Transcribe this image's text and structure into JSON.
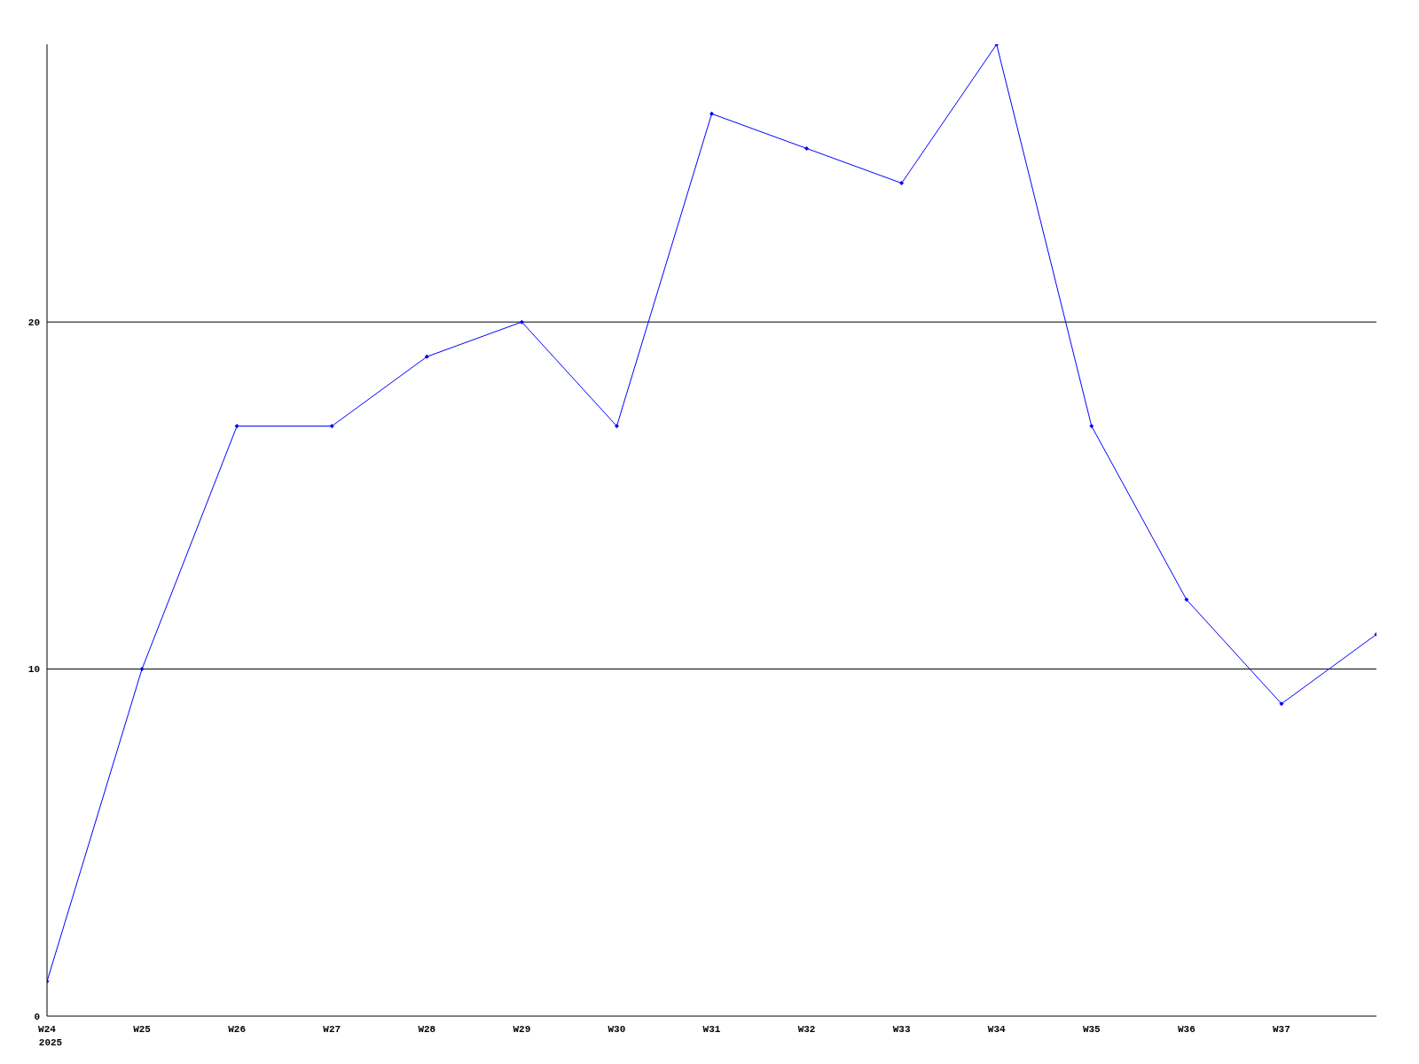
{
  "chart_data": {
    "type": "line",
    "categories": [
      "W24",
      "W25",
      "W26",
      "W27",
      "W28",
      "W29",
      "W30",
      "W31",
      "W32",
      "W33",
      "W34",
      "W35",
      "W36",
      "W37",
      null
    ],
    "series": [
      {
        "color": "#0000ff",
        "values": [
          1,
          10,
          17,
          17,
          19,
          20,
          17,
          26,
          25,
          24,
          28,
          17,
          12,
          9,
          11
        ]
      }
    ],
    "ylim": [
      0,
      28
    ],
    "yticks": [
      0,
      10,
      20
    ],
    "grid": "y",
    "legend": false,
    "marker": "diamond",
    "line_style": "solid",
    "annotations": [
      "2025"
    ]
  }
}
